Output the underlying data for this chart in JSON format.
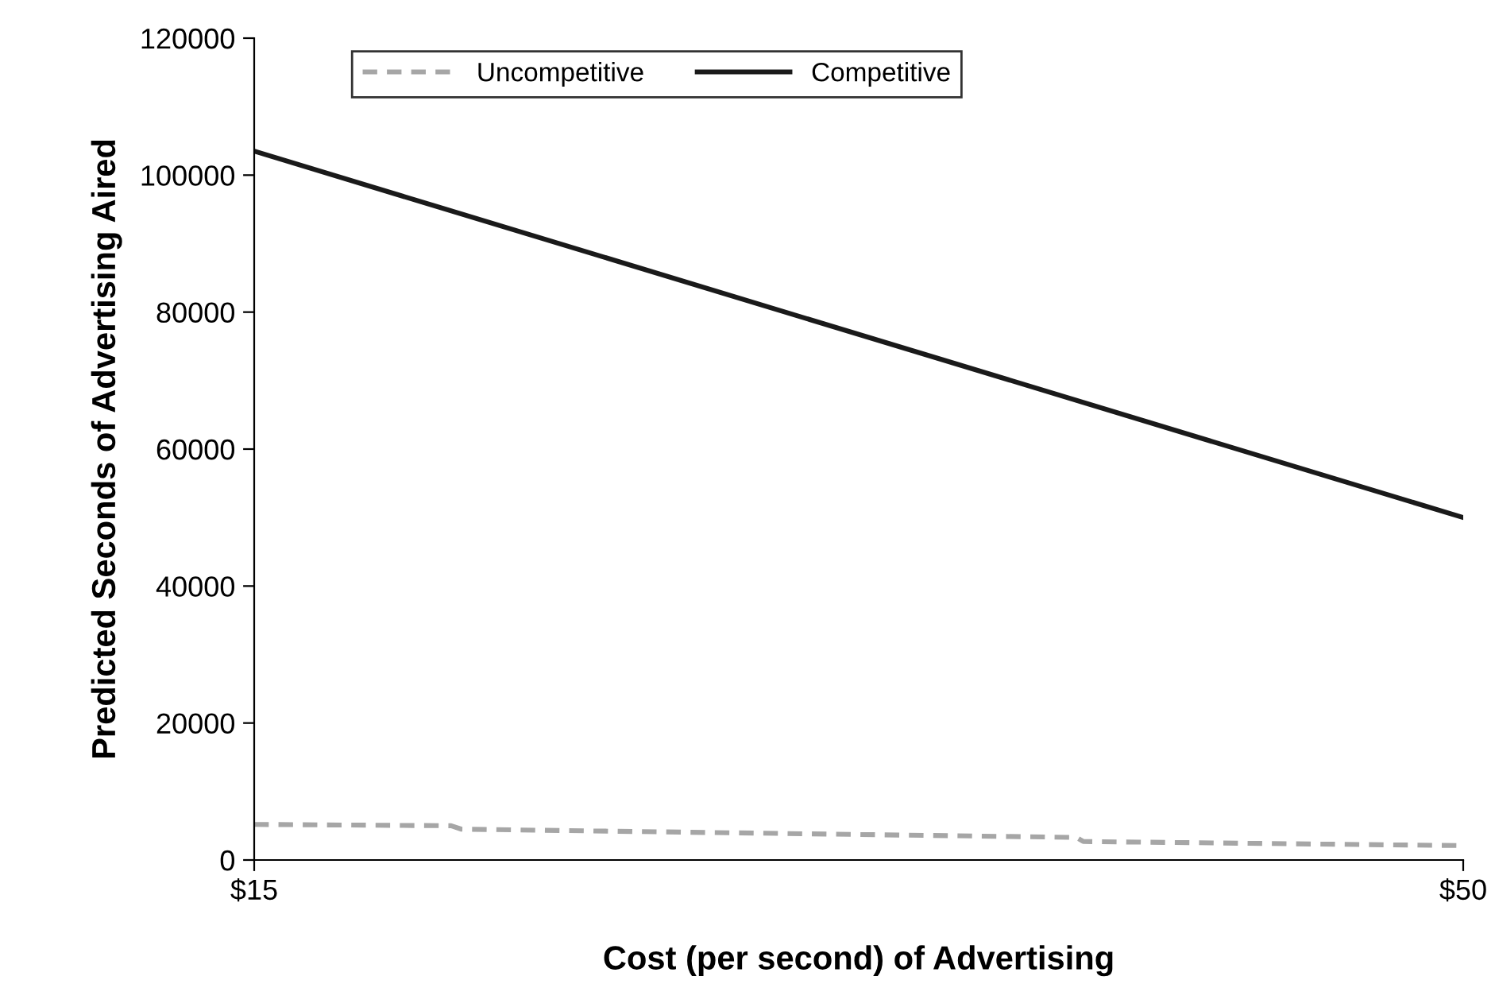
{
  "chart_data": {
    "type": "line",
    "xlabel": "Cost (per second) of Advertising",
    "ylabel": "Predicted Seconds of Advertising Aired",
    "xlim": [
      15,
      50
    ],
    "xticks": [
      {
        "value": 15,
        "label": "$15"
      },
      {
        "value": 50,
        "label": "$50"
      }
    ],
    "ylim": [
      0,
      120000
    ],
    "yticks": [
      0,
      20000,
      40000,
      60000,
      80000,
      100000,
      120000
    ],
    "grid": false,
    "legend": "top left",
    "marker": "none",
    "series": [
      {
        "name": "Uncompetitive",
        "color": "#a6a6a6",
        "line_style": "dashed",
        "x": [
          15,
          20.7,
          21,
          38.8,
          39,
          50
        ],
        "values": [
          5200,
          5000,
          4500,
          3300,
          2700,
          2100
        ]
      },
      {
        "name": "Competitive",
        "color": "#1a1a1a",
        "line_style": "solid",
        "x": [
          15,
          50
        ],
        "values": [
          103500,
          50000
        ]
      }
    ]
  }
}
